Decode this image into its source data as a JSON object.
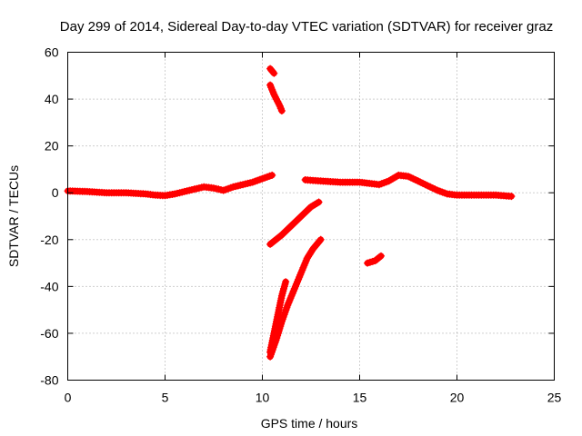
{
  "chart_data": {
    "type": "scatter",
    "title": "Day 299 of 2014, Sidereal Day-to-day VTEC variation (SDTVAR) for receiver graz",
    "xlabel": "GPS time / hours",
    "ylabel": "SDTVAR / TECUs",
    "xlim": [
      0,
      25
    ],
    "ylim": [
      -80,
      60
    ],
    "xticks": [
      0,
      5,
      10,
      15,
      20,
      25
    ],
    "yticks": [
      -80,
      -60,
      -40,
      -20,
      0,
      20,
      40,
      60
    ],
    "grid": true,
    "marker": "+",
    "series_color": "#ff0000",
    "series": [
      {
        "name": "main-trace",
        "points": [
          [
            0,
            0.8
          ],
          [
            1,
            0.5
          ],
          [
            2,
            0
          ],
          [
            3,
            0
          ],
          [
            4,
            -0.5
          ],
          [
            4.5,
            -1
          ],
          [
            5,
            -1.2
          ],
          [
            5.5,
            -0.5
          ],
          [
            6,
            0.5
          ],
          [
            6.5,
            1.5
          ],
          [
            7,
            2.5
          ],
          [
            7.5,
            2
          ],
          [
            8,
            1
          ],
          [
            8.5,
            2.5
          ],
          [
            9,
            3.5
          ],
          [
            9.5,
            4.5
          ],
          [
            10,
            6
          ],
          [
            10.5,
            7.5
          ]
        ]
      },
      {
        "name": "upper-segment-1",
        "points": [
          [
            10.4,
            53
          ],
          [
            10.6,
            51
          ]
        ]
      },
      {
        "name": "upper-segment-2",
        "points": [
          [
            10.4,
            46
          ],
          [
            10.6,
            42
          ],
          [
            10.9,
            37
          ],
          [
            11,
            35
          ]
        ]
      },
      {
        "name": "lower-branch-1",
        "points": [
          [
            10.4,
            -70
          ],
          [
            10.7,
            -63
          ],
          [
            11,
            -55
          ],
          [
            11.3,
            -48
          ],
          [
            11.7,
            -40
          ],
          [
            12,
            -34
          ],
          [
            12.3,
            -28
          ],
          [
            12.6,
            -24
          ],
          [
            13,
            -20
          ]
        ]
      },
      {
        "name": "lower-branch-2",
        "points": [
          [
            10.4,
            -68
          ],
          [
            10.6,
            -60
          ],
          [
            10.8,
            -52
          ],
          [
            11,
            -44
          ],
          [
            11.2,
            -38
          ]
        ]
      },
      {
        "name": "middle-branch",
        "points": [
          [
            10.4,
            -22
          ],
          [
            11,
            -18
          ],
          [
            11.5,
            -14
          ],
          [
            12,
            -10
          ],
          [
            12.5,
            -6
          ],
          [
            12.9,
            -4
          ]
        ]
      },
      {
        "name": "right-trace",
        "points": [
          [
            12.2,
            5.5
          ],
          [
            13,
            5
          ],
          [
            14,
            4.5
          ],
          [
            15,
            4.5
          ],
          [
            15.5,
            4
          ],
          [
            16,
            3.5
          ],
          [
            16.5,
            5
          ],
          [
            17,
            7.5
          ],
          [
            17.5,
            7
          ],
          [
            18,
            5
          ],
          [
            18.5,
            3
          ],
          [
            19,
            1
          ],
          [
            19.5,
            -0.5
          ],
          [
            20,
            -1
          ],
          [
            21,
            -1
          ],
          [
            22,
            -1
          ],
          [
            22.8,
            -1.5
          ]
        ]
      },
      {
        "name": "small-segment",
        "points": [
          [
            15.4,
            -30
          ],
          [
            15.8,
            -29
          ],
          [
            16.1,
            -27
          ]
        ]
      }
    ]
  }
}
